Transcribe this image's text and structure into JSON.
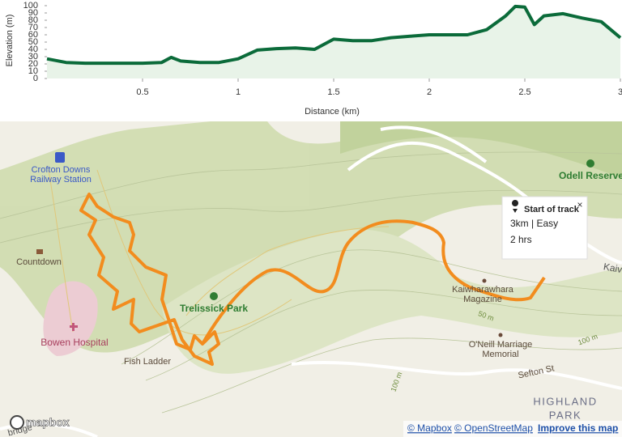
{
  "chart_data": {
    "type": "area",
    "xlabel": "Distance (km)",
    "ylabel": "Elevation (m)",
    "color": "#0b6b3a",
    "fill": "#e8f3e8",
    "grid": false,
    "x": [
      0,
      0.1,
      0.2,
      0.3,
      0.4,
      0.5,
      0.6,
      0.65,
      0.7,
      0.8,
      0.9,
      1.0,
      1.1,
      1.2,
      1.3,
      1.4,
      1.5,
      1.6,
      1.7,
      1.8,
      1.9,
      2.0,
      2.1,
      2.2,
      2.3,
      2.4,
      2.45,
      2.5,
      2.55,
      2.6,
      2.7,
      2.8,
      2.9,
      3.0
    ],
    "values": [
      27,
      22,
      21,
      21,
      21,
      21,
      22,
      29,
      24,
      22,
      22,
      27,
      39,
      41,
      42,
      40,
      54,
      52,
      52,
      56,
      58,
      60,
      60,
      60,
      67,
      86,
      99,
      98,
      74,
      86,
      89,
      83,
      78,
      56
    ],
    "xlim": [
      0,
      3
    ],
    "ylim": [
      0,
      100
    ],
    "xticks": [
      0.5,
      1,
      1.5,
      2,
      2.5,
      3
    ],
    "yticks": [
      0,
      10,
      20,
      30,
      40,
      50,
      60,
      70,
      80,
      90,
      100
    ]
  },
  "map": {
    "places": {
      "station": [
        "Crofton Downs",
        "Railway Station"
      ],
      "countdown": "Countdown",
      "hospital": "Bowen Hospital",
      "fish_ladder": "Fish Ladder",
      "park": "Trelissick Park",
      "odell": "Odell Reserve",
      "magazine": [
        "Kaiwharawhara",
        "Magazine"
      ],
      "memorial": [
        "O'Neill Marriage",
        "Memorial"
      ],
      "sefton": "Sefton St",
      "highland": [
        "HIGHLAND",
        "PARK"
      ],
      "contour_50": "50 m",
      "contour_100a": "100 m",
      "contour_100b": "100 m",
      "road_right": "Kaiv",
      "road_left": "bridge"
    },
    "popup": {
      "title": "Start of track",
      "details": "3km | Easy",
      "duration": "2 hrs",
      "close": "×"
    },
    "logo": "mapbox",
    "attribution": [
      "© Mapbox",
      "© OpenStreetMap",
      "Improve this map"
    ]
  }
}
